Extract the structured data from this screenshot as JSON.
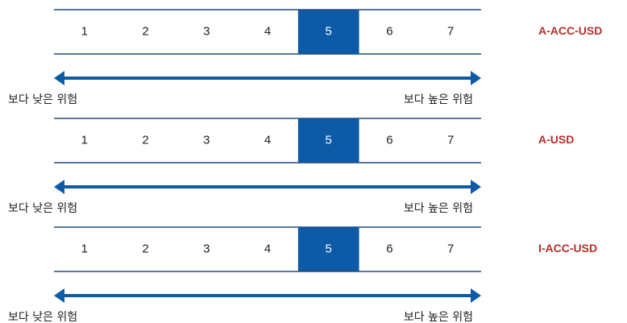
{
  "blocks": [
    {
      "label": "A-ACC-USD",
      "scale": [
        1,
        2,
        3,
        4,
        5,
        6,
        7
      ],
      "highlight": 5,
      "low": "보다 낮은 위험",
      "high": "보다 높은 위험"
    },
    {
      "label": "A-USD",
      "scale": [
        1,
        2,
        3,
        4,
        5,
        6,
        7
      ],
      "highlight": 5,
      "low": "보다 낮은 위험",
      "high": "보다 높은 위험"
    },
    {
      "label": "I-ACC-USD",
      "scale": [
        1,
        2,
        3,
        4,
        5,
        6,
        7
      ],
      "highlight": 5,
      "low": "보다 낮은 위험",
      "high": "보다 높은 위험"
    }
  ]
}
